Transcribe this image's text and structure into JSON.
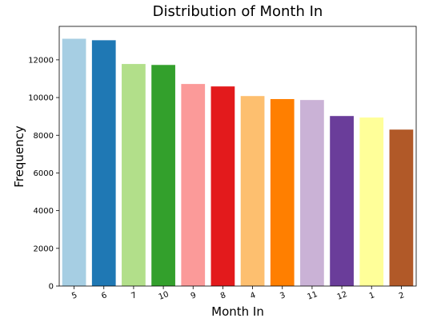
{
  "chart_data": {
    "type": "bar",
    "title": "Distribution of Month In",
    "xlabel": "Month In",
    "ylabel": "Frequency",
    "categories": [
      "5",
      "6",
      "7",
      "10",
      "9",
      "8",
      "4",
      "3",
      "11",
      "12",
      "1",
      "2"
    ],
    "values": [
      13120,
      13040,
      11780,
      11730,
      10720,
      10590,
      10080,
      9920,
      9870,
      9020,
      8940,
      8300
    ],
    "colors": [
      "#a6cee3",
      "#1f78b4",
      "#b2df8a",
      "#33a02c",
      "#fb9a99",
      "#e31a1c",
      "#fdbf6f",
      "#ff7f00",
      "#cab2d6",
      "#6a3d9a",
      "#ffff99",
      "#b15928"
    ],
    "ylim": [
      0,
      13776
    ],
    "yticks": [
      0,
      2000,
      4000,
      6000,
      8000,
      10000,
      12000
    ],
    "grid": false,
    "legend": "none"
  }
}
